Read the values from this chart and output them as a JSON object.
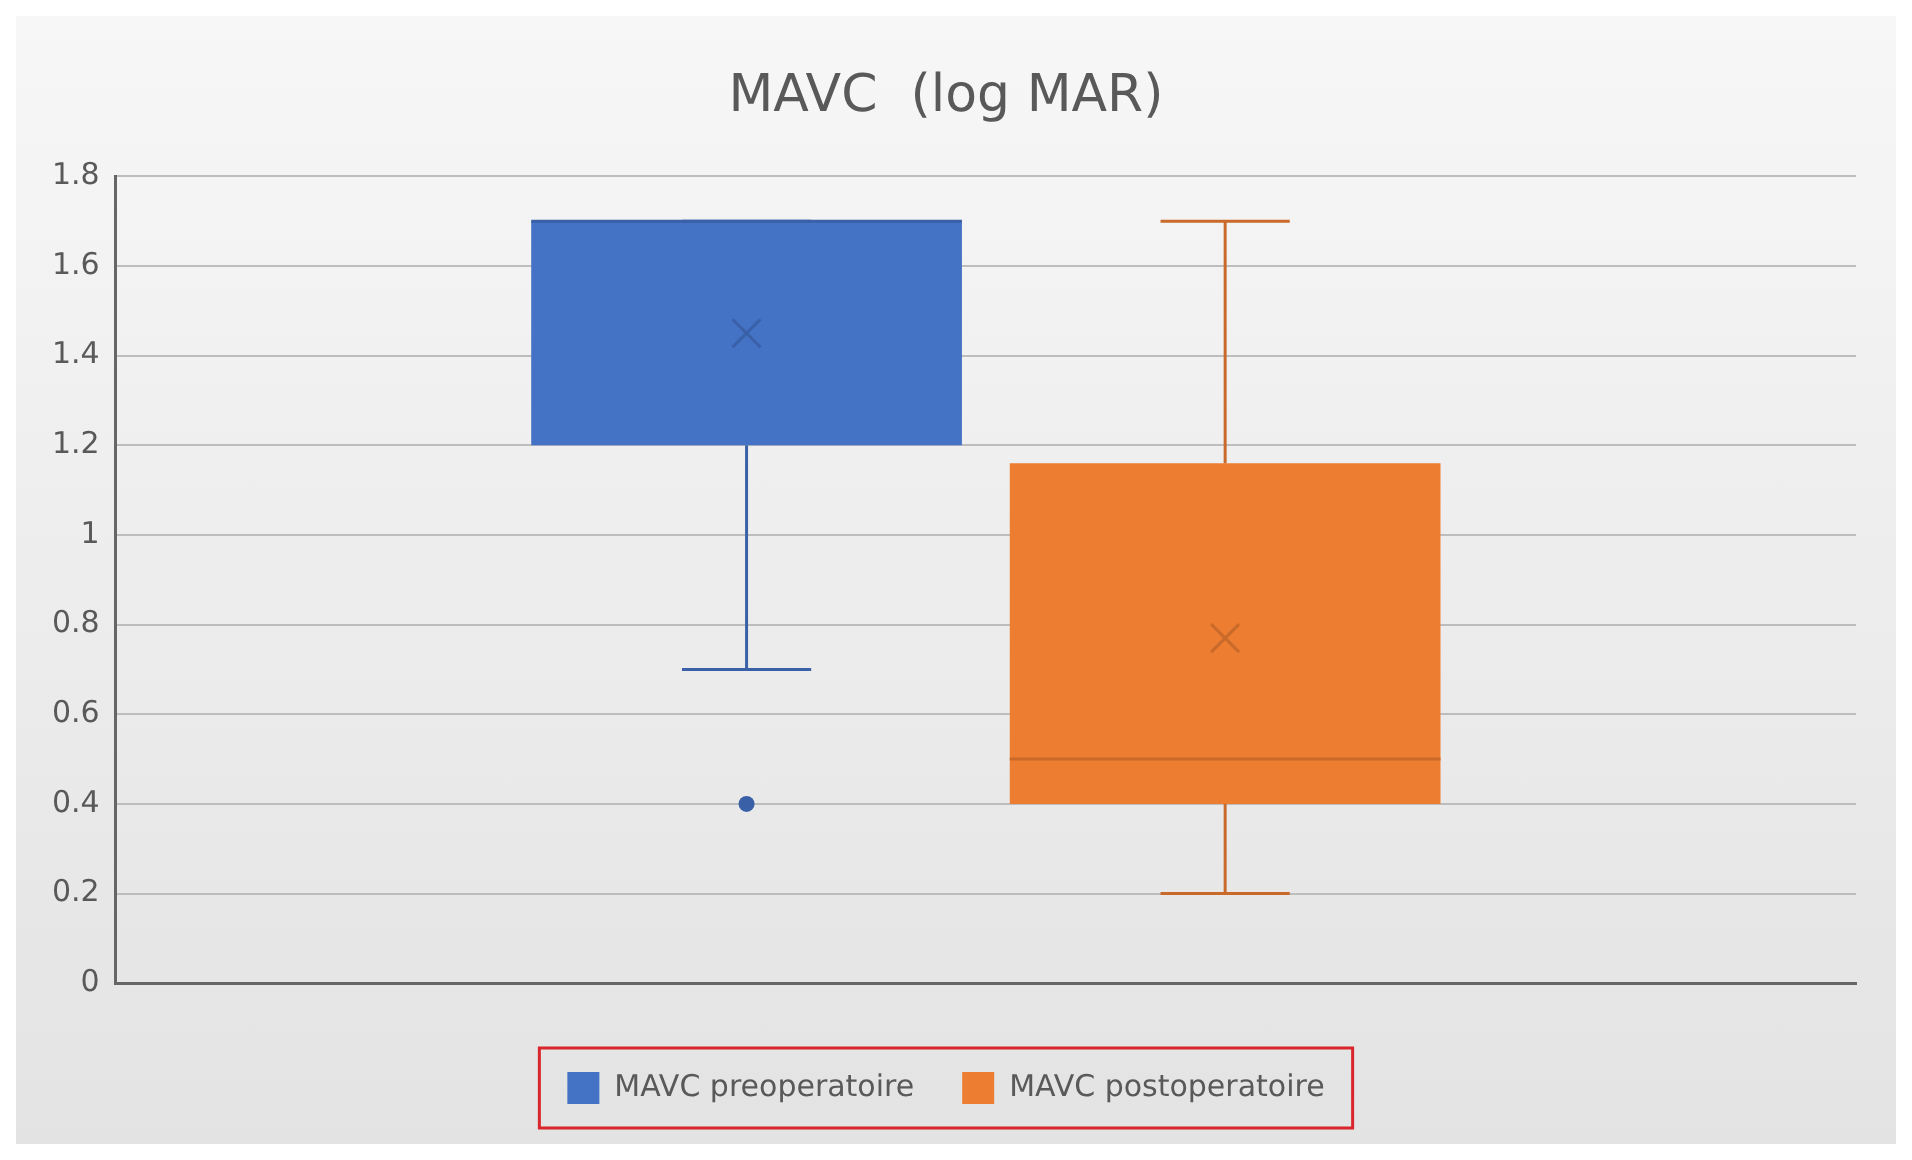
{
  "chart_data": {
    "type": "box",
    "title": "MAVC  (log MAR)",
    "categories": [
      null
    ],
    "series": [
      {
        "name": "MAVC preoperatoire",
        "color": "#4472c4",
        "boxes": [
          {
            "low": 0.7,
            "q1": 1.2,
            "median": 1.7,
            "q3": 1.7,
            "high": 1.7,
            "mean": 1.45,
            "outliers": [
              0.4
            ]
          }
        ]
      },
      {
        "name": "MAVC postoperatoire",
        "color": "#ed7d31",
        "boxes": [
          {
            "low": 0.2,
            "q1": 0.4,
            "median": 0.5,
            "q3": 1.16,
            "high": 1.7,
            "mean": 0.77
          }
        ]
      }
    ],
    "ylim": [
      0,
      1.8
    ],
    "yticks": [
      0,
      0.2,
      0.4,
      0.6,
      0.8,
      1,
      1.2,
      1.4,
      1.6,
      1.8
    ],
    "grid": "y",
    "legend": "bottom"
  }
}
